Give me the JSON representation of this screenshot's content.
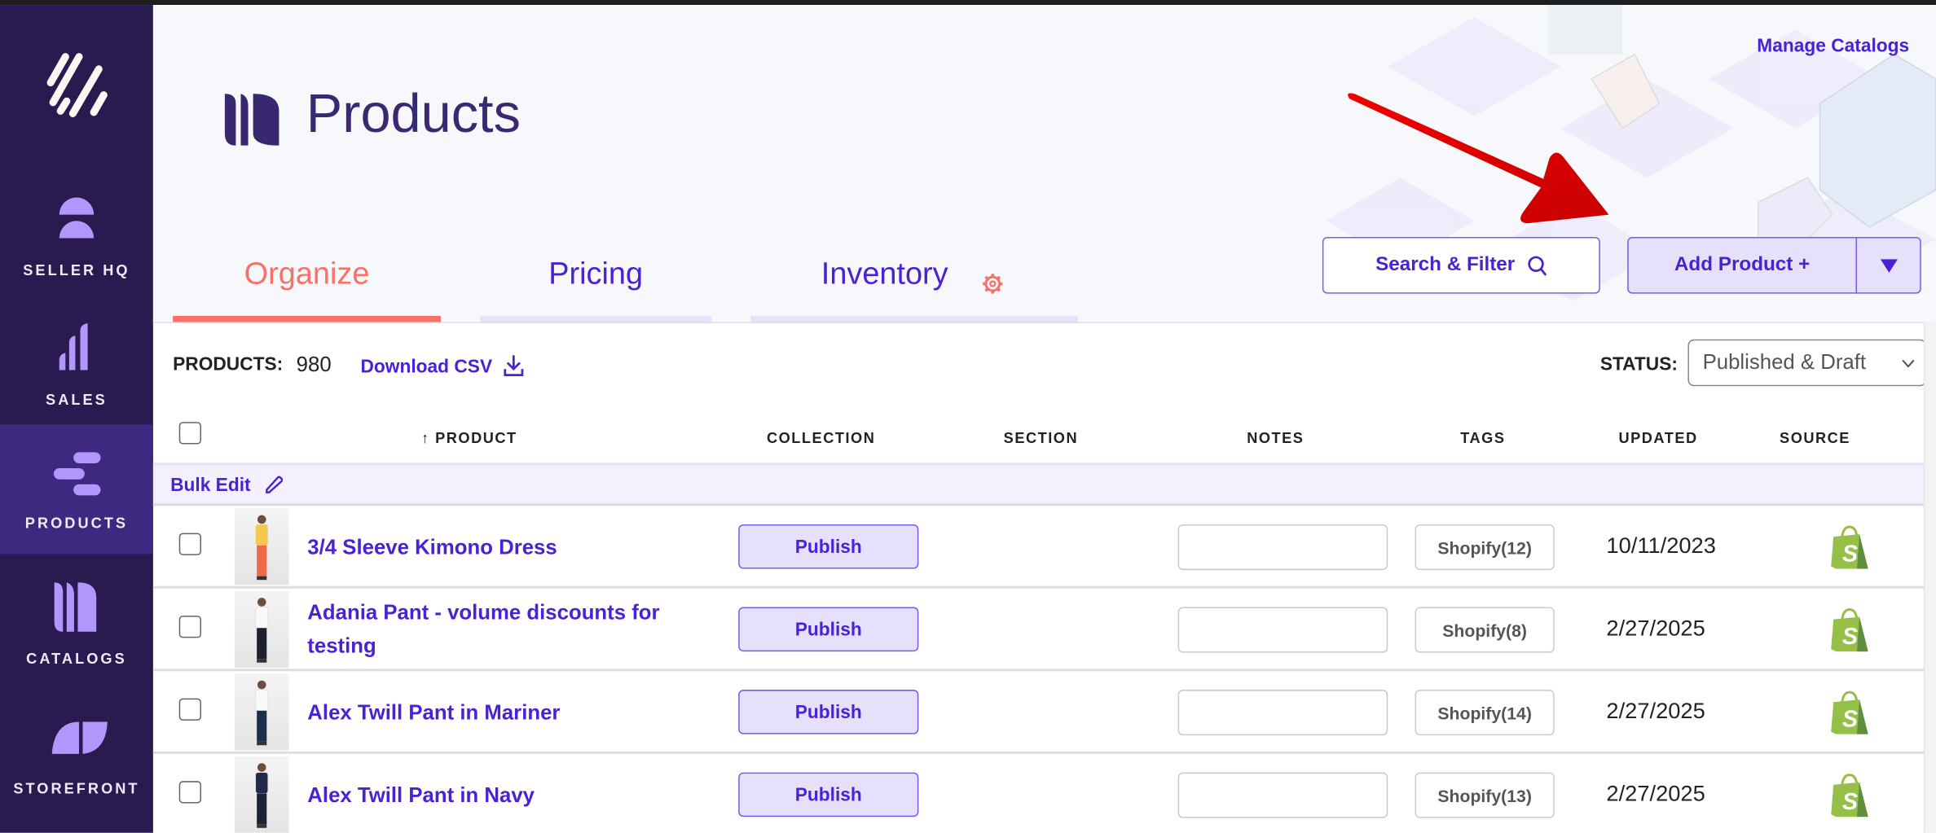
{
  "colors": {
    "sidebar": "#291b4f",
    "sidebar_active": "#3d2a80",
    "accent": "#4a22d4",
    "tab_active": "#f87168",
    "button_fill": "#e6e0fa",
    "shopify_green": "#95bf47",
    "annotation_arrow": "#e00000"
  },
  "sidebar": {
    "items": [
      {
        "label": "SELLER HQ",
        "icon": "seller-hq-icon"
      },
      {
        "label": "SALES",
        "icon": "bar-chart-icon"
      },
      {
        "label": "PRODUCTS",
        "icon": "products-icon",
        "active": true
      },
      {
        "label": "CATALOGS",
        "icon": "catalogs-icon"
      },
      {
        "label": "STOREFRONT",
        "icon": "storefront-icon"
      }
    ]
  },
  "header": {
    "title": "Products",
    "manage_catalogs": "Manage Catalogs",
    "search_filter": "Search & Filter",
    "add_product": "Add Product +"
  },
  "tabs": [
    {
      "label": "Organize",
      "active": true
    },
    {
      "label": "Pricing"
    },
    {
      "label": "Inventory"
    }
  ],
  "toolbar": {
    "products_label": "PRODUCTS:",
    "products_count": "980",
    "download_csv": "Download CSV",
    "status_label": "STATUS:",
    "status_value": "Published & Draft"
  },
  "table": {
    "columns": [
      "PRODUCT",
      "COLLECTION",
      "SECTION",
      "NOTES",
      "TAGS",
      "UPDATED",
      "SOURCE"
    ],
    "sort_indicator": "↑",
    "bulk_edit": "Bulk Edit",
    "rows": [
      {
        "name": "3/4 Sleeve Kimono Dress",
        "collection": "Publish",
        "tags": "Shopify(12)",
        "updated": "10/11/2023",
        "source": "shopify-icon"
      },
      {
        "name": "Adania Pant - volume discounts for testing",
        "collection": "Publish",
        "tags": "Shopify(8)",
        "updated": "2/27/2025",
        "source": "shopify-icon"
      },
      {
        "name": "Alex Twill Pant in Mariner",
        "collection": "Publish",
        "tags": "Shopify(14)",
        "updated": "2/27/2025",
        "source": "shopify-icon"
      },
      {
        "name": "Alex Twill Pant in Navy",
        "collection": "Publish",
        "tags": "Shopify(13)",
        "updated": "2/27/2025",
        "source": "shopify-icon"
      }
    ]
  }
}
